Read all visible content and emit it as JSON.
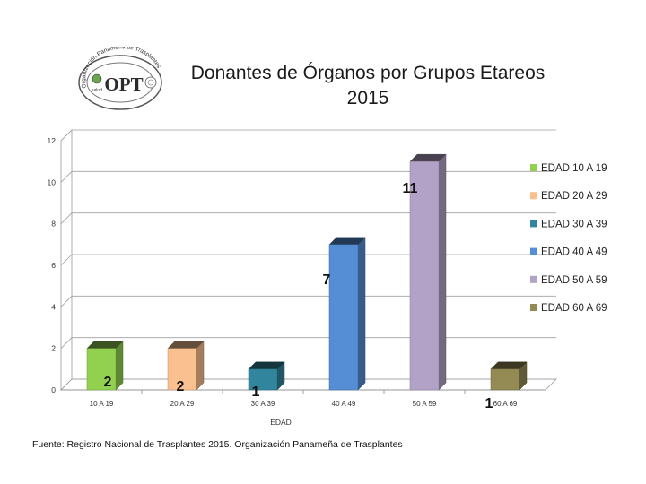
{
  "title_line1": "Donantes de Órganos por Grupos Etareos",
  "title_line2": "2015",
  "logo": {
    "text": "OPT",
    "arc_text": "Organización Panameña de Trasplantes",
    "small_text": "salud"
  },
  "source_text": "Fuente: Registro Nacional de Trasplantes 2015. Organización Panameña de Trasplantes",
  "chart_data": {
    "type": "bar",
    "style": "3d-column",
    "categories": [
      "10 A 19",
      "20 A 29",
      "30 A 39",
      "40 A 49",
      "50 A 59",
      "60 A 69"
    ],
    "values": [
      2,
      2,
      1,
      7,
      11,
      1
    ],
    "data_labels": [
      "2",
      "2",
      "1",
      "7",
      "11",
      "1"
    ],
    "legend": [
      "EDAD 10 A 19",
      "EDAD 20 A 29",
      "EDAD 30 A 39",
      "EDAD 40 A 49",
      "EDAD 50 A 59",
      "EDAD 60 A 69"
    ],
    "colors": [
      "#92d050",
      "#fac090",
      "#31859c",
      "#558ed5",
      "#b3a2c7",
      "#948a54"
    ],
    "xlabel": "EDAD",
    "ylabel": "",
    "ylim": [
      0,
      12
    ],
    "yticks": [
      "0",
      "2",
      "4",
      "6",
      "8",
      "10",
      "12"
    ],
    "grid": true,
    "legend_position": "right"
  }
}
